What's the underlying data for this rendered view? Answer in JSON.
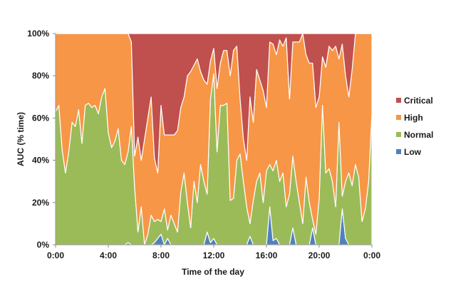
{
  "chart_data": {
    "type": "area",
    "stacked": true,
    "normalized": true,
    "title": "",
    "xlabel": "Time of the day",
    "ylabel": "AUC (% time)",
    "xlim_hours": [
      0,
      24
    ],
    "ylim": [
      0,
      100
    ],
    "x_ticks": [
      "0:00",
      "4:00",
      "8:00",
      "12:00",
      "16:00",
      "20:00",
      "0:00"
    ],
    "y_ticks": [
      "0%",
      "20%",
      "40%",
      "60%",
      "80%",
      "100%"
    ],
    "grid": false,
    "legend_position": "right",
    "legend": [
      {
        "name": "Critical",
        "color": "#c0504d"
      },
      {
        "name": "High",
        "color": "#f79646"
      },
      {
        "name": "Normal",
        "color": "#9bbb59"
      },
      {
        "name": "Low",
        "color": "#4f81bd"
      }
    ],
    "x_hours": [
      0.0,
      0.25,
      0.5,
      0.75,
      1.0,
      1.25,
      1.5,
      1.75,
      2.0,
      2.25,
      2.5,
      2.75,
      3.0,
      3.25,
      3.5,
      3.75,
      4.0,
      4.25,
      4.5,
      4.75,
      5.0,
      5.25,
      5.5,
      5.75,
      6.0,
      6.25,
      6.5,
      6.75,
      7.0,
      7.25,
      7.5,
      7.75,
      8.0,
      8.25,
      8.5,
      8.75,
      9.0,
      9.25,
      9.5,
      9.75,
      10.0,
      10.25,
      10.5,
      10.75,
      11.0,
      11.25,
      11.5,
      11.75,
      12.0,
      12.25,
      12.5,
      12.75,
      13.0,
      13.25,
      13.5,
      13.75,
      14.0,
      14.25,
      14.5,
      14.75,
      15.0,
      15.25,
      15.5,
      15.75,
      16.0,
      16.25,
      16.5,
      16.75,
      17.0,
      17.25,
      17.5,
      17.75,
      18.0,
      18.25,
      18.5,
      18.75,
      19.0,
      19.25,
      19.5,
      19.75,
      20.0,
      20.25,
      20.5,
      20.75,
      21.0,
      21.25,
      21.5,
      21.75,
      22.0,
      22.25,
      22.5,
      22.75,
      23.0,
      23.25,
      23.5,
      23.75,
      24.0
    ],
    "series": [
      {
        "name": "Low",
        "values": [
          0,
          0,
          0,
          0,
          0,
          0,
          0,
          0,
          0,
          0,
          0,
          0,
          0,
          0,
          0,
          0,
          0,
          0,
          0,
          0,
          0,
          0,
          1,
          0,
          0,
          0,
          0,
          0,
          0,
          0,
          1,
          3,
          5,
          0,
          3,
          0,
          0,
          0,
          0,
          0,
          0,
          0,
          0,
          0,
          0,
          0,
          6,
          1,
          3,
          0,
          0,
          0,
          0,
          0,
          0,
          0,
          0,
          0,
          0,
          4,
          0,
          0,
          0,
          0,
          0,
          18,
          2,
          3,
          0,
          0,
          0,
          0,
          8,
          0,
          0,
          0,
          0,
          0,
          8,
          0,
          0,
          0,
          0,
          0,
          0,
          0,
          0,
          17,
          3,
          0,
          0,
          0,
          0,
          0,
          0,
          0,
          0
        ]
      },
      {
        "name": "Normal",
        "values": [
          63,
          66,
          45,
          34,
          44,
          58,
          56,
          64,
          48,
          66,
          67,
          65,
          66,
          62,
          70,
          74,
          53,
          46,
          49,
          55,
          40,
          38,
          43,
          56,
          27,
          6,
          18,
          0,
          5,
          14,
          10,
          9,
          6,
          17,
          4,
          14,
          10,
          6,
          25,
          34,
          20,
          8,
          30,
          20,
          38,
          30,
          18,
          68,
          78,
          44,
          66,
          66,
          67,
          21,
          22,
          40,
          43,
          30,
          18,
          6,
          21,
          30,
          34,
          20,
          35,
          20,
          33,
          37,
          30,
          34,
          18,
          24,
          34,
          30,
          20,
          10,
          32,
          20,
          4,
          5,
          22,
          66,
          34,
          36,
          30,
          18,
          58,
          6,
          27,
          34,
          28,
          38,
          32,
          11,
          17,
          30,
          62
        ]
      },
      {
        "name": "High",
        "values": [
          37,
          34,
          55,
          66,
          56,
          42,
          44,
          36,
          52,
          34,
          33,
          35,
          34,
          38,
          30,
          26,
          47,
          54,
          51,
          45,
          60,
          62,
          56,
          40,
          15,
          45,
          22,
          50,
          55,
          56,
          30,
          22,
          55,
          35,
          45,
          38,
          42,
          48,
          40,
          36,
          60,
          74,
          55,
          68,
          44,
          48,
          52,
          18,
          12,
          30,
          20,
          26,
          25,
          59,
          70,
          54,
          26,
          20,
          22,
          60,
          37,
          53,
          44,
          53,
          30,
          58,
          60,
          50,
          67,
          60,
          80,
          45,
          54,
          66,
          76,
          90,
          58,
          66,
          74,
          60,
          48,
          23,
          50,
          58,
          62,
          76,
          30,
          72,
          50,
          36,
          55,
          62,
          68,
          89,
          83,
          70,
          38
        ]
      },
      {
        "name": "Critical",
        "values": [
          0,
          0,
          0,
          0,
          0,
          0,
          0,
          0,
          0,
          0,
          0,
          0,
          0,
          0,
          0,
          0,
          0,
          0,
          0,
          0,
          0,
          0,
          0,
          4,
          58,
          49,
          60,
          50,
          40,
          30,
          59,
          66,
          34,
          48,
          48,
          48,
          48,
          46,
          35,
          30,
          20,
          18,
          15,
          12,
          18,
          22,
          24,
          13,
          7,
          26,
          14,
          8,
          8,
          20,
          8,
          6,
          31,
          50,
          60,
          30,
          42,
          17,
          22,
          27,
          35,
          4,
          5,
          10,
          3,
          6,
          2,
          31,
          4,
          4,
          4,
          0,
          10,
          14,
          14,
          35,
          30,
          11,
          16,
          6,
          8,
          6,
          12,
          5,
          20,
          30,
          17,
          0,
          0,
          0,
          0,
          0,
          0
        ]
      }
    ]
  }
}
